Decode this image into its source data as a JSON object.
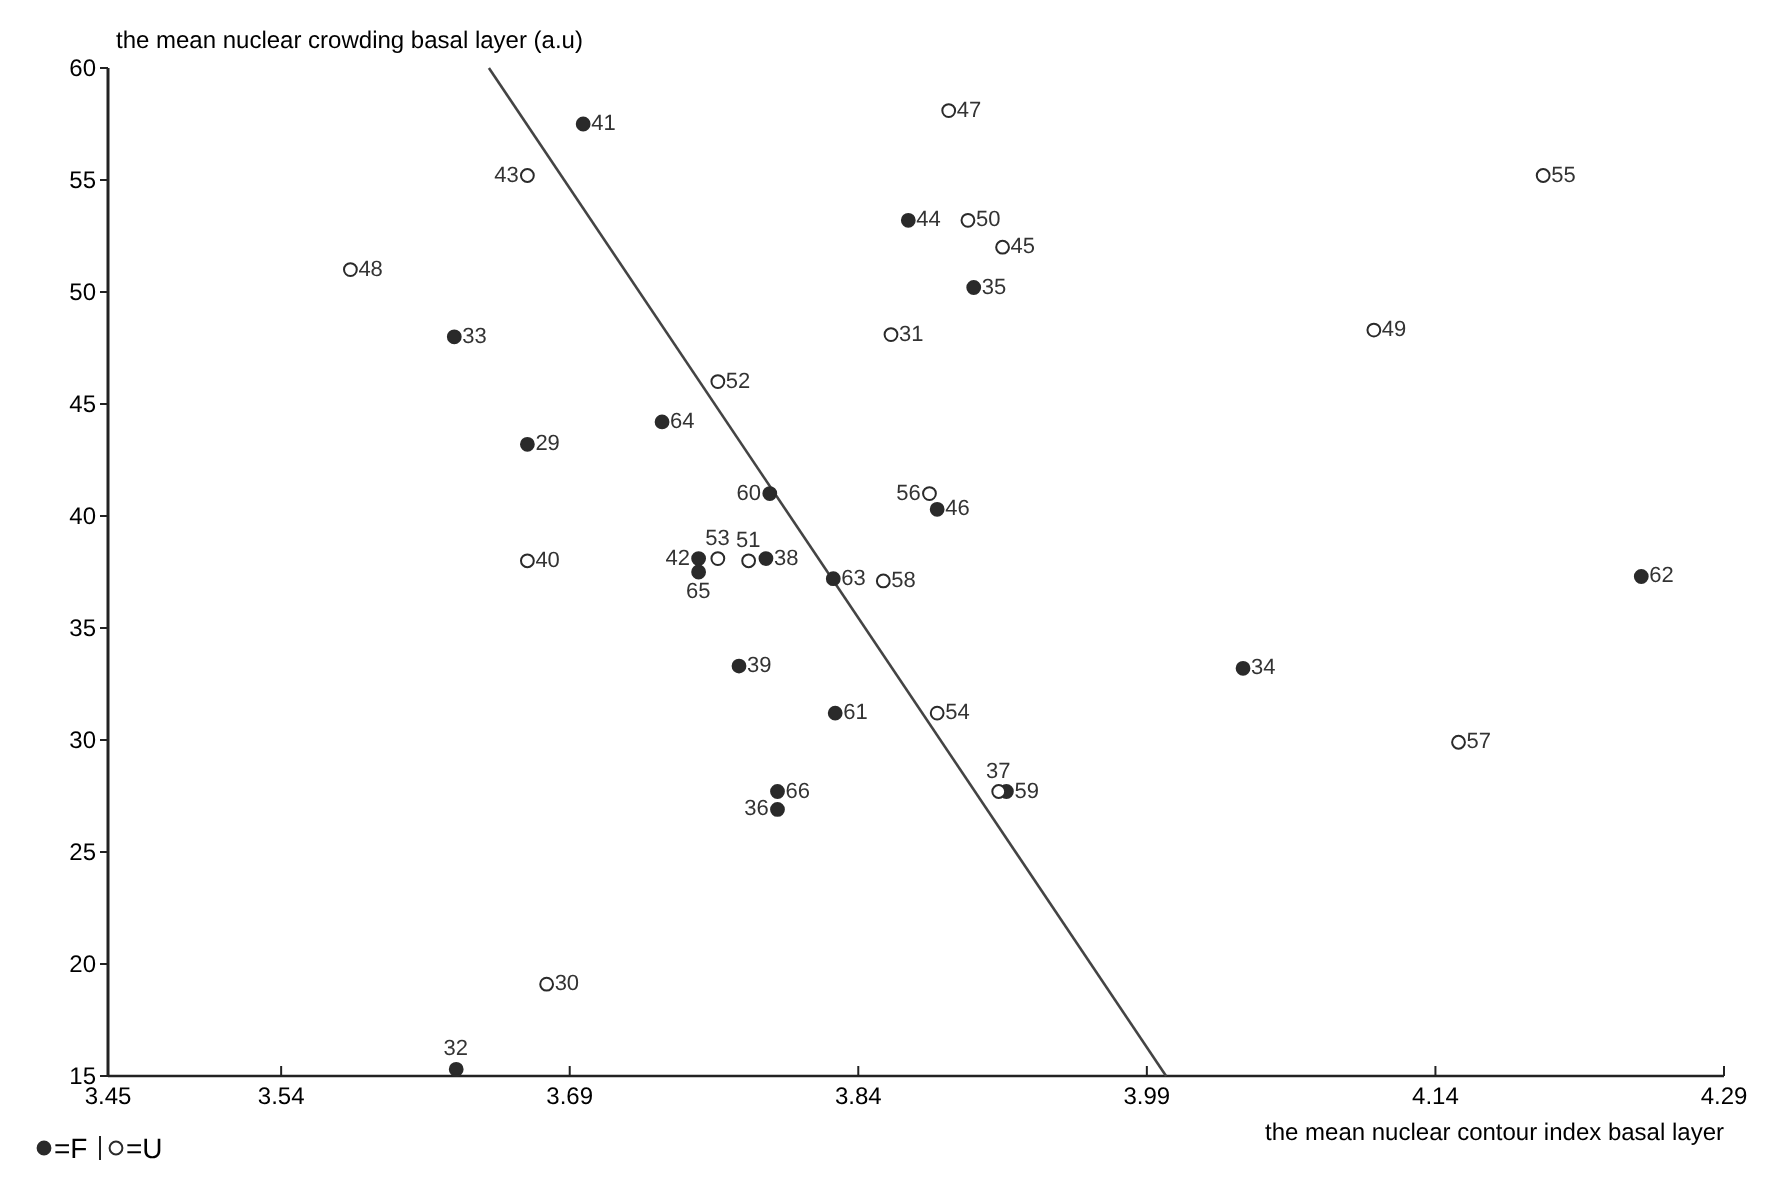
{
  "chart_data": {
    "type": "scatter",
    "xlabel": "the mean nuclear contour index basal layer",
    "ylabel": "the mean nuclear crowding basal layer (a.u)",
    "xlim": [
      3.45,
      4.29
    ],
    "xticks": [
      3.45,
      3.54,
      3.69,
      3.84,
      3.99,
      4.14,
      4.29
    ],
    "ylim": [
      15,
      60
    ],
    "yticks": [
      15,
      20,
      25,
      30,
      35,
      40,
      45,
      50,
      55,
      60
    ],
    "grid": false,
    "legend": "bottom left",
    "series": [
      {
        "name": "=F",
        "color": "#2a2a2a",
        "marker": "circle",
        "x": [
          3.697,
          3.63,
          3.668,
          3.738,
          3.794,
          3.757,
          3.757,
          3.792,
          3.827,
          3.881,
          3.866,
          3.9,
          4.247,
          4.04,
          3.917,
          3.828,
          3.778,
          3.798,
          3.798,
          3.631
        ],
        "values": [
          57.5,
          48.0,
          43.2,
          44.2,
          41.0,
          38.1,
          37.5,
          38.1,
          37.2,
          40.3,
          53.2,
          50.2,
          37.3,
          33.2,
          27.7,
          31.2,
          33.3,
          27.7,
          26.9,
          15.3
        ]
      },
      {
        "name": "=U",
        "color": "#ffffff",
        "marker": "circle",
        "x": [
          3.668,
          3.576,
          3.767,
          3.668,
          3.767,
          3.783,
          3.853,
          3.877,
          3.857,
          3.897,
          3.915,
          3.887,
          4.196,
          4.108,
          4.152,
          3.881,
          3.913,
          3.678
        ],
        "values": [
          55.2,
          51.0,
          46.0,
          38.0,
          38.1,
          38.0,
          37.1,
          41.0,
          48.1,
          53.2,
          52.0,
          58.1,
          55.2,
          48.3,
          29.9,
          31.2,
          27.7,
          19.1
        ]
      },
      {
        "type": "line",
        "color": "#444444",
        "x": [
          3.648,
          4.0
        ],
        "values": [
          60,
          15
        ]
      }
    ],
    "annotations": [
      {
        "text": "41",
        "x": 3.697,
        "y": 57.5
      },
      {
        "text": "33",
        "x": 3.63,
        "y": 48.0
      },
      {
        "text": "29",
        "x": 3.668,
        "y": 43.2
      },
      {
        "text": "64",
        "x": 3.738,
        "y": 44.2
      },
      {
        "text": "60",
        "x": 3.794,
        "y": 41.0
      },
      {
        "text": "42",
        "x": 3.757,
        "y": 38.1
      },
      {
        "text": "65",
        "x": 3.757,
        "y": 37.5
      },
      {
        "text": "38",
        "x": 3.792,
        "y": 38.1
      },
      {
        "text": "63",
        "x": 3.827,
        "y": 37.2
      },
      {
        "text": "46",
        "x": 3.881,
        "y": 40.3
      },
      {
        "text": "44",
        "x": 3.866,
        "y": 53.2
      },
      {
        "text": "35",
        "x": 3.9,
        "y": 50.2
      },
      {
        "text": "62",
        "x": 4.247,
        "y": 37.3
      },
      {
        "text": "34",
        "x": 4.04,
        "y": 33.2
      },
      {
        "text": "59",
        "x": 3.917,
        "y": 27.7
      },
      {
        "text": "61",
        "x": 3.828,
        "y": 31.2
      },
      {
        "text": "39",
        "x": 3.778,
        "y": 33.3
      },
      {
        "text": "66",
        "x": 3.798,
        "y": 27.7
      },
      {
        "text": "36",
        "x": 3.798,
        "y": 26.9
      },
      {
        "text": "32",
        "x": 3.631,
        "y": 15.3
      },
      {
        "text": "43",
        "x": 3.668,
        "y": 55.2
      },
      {
        "text": "48",
        "x": 3.576,
        "y": 51.0
      },
      {
        "text": "52",
        "x": 3.767,
        "y": 46.0
      },
      {
        "text": "40",
        "x": 3.668,
        "y": 38.0
      },
      {
        "text": "53",
        "x": 3.767,
        "y": 38.1
      },
      {
        "text": "51",
        "x": 3.783,
        "y": 38.0
      },
      {
        "text": "58",
        "x": 3.853,
        "y": 37.1
      },
      {
        "text": "56",
        "x": 3.877,
        "y": 41.0
      },
      {
        "text": "31",
        "x": 3.857,
        "y": 48.1
      },
      {
        "text": "50",
        "x": 3.897,
        "y": 53.2
      },
      {
        "text": "45",
        "x": 3.915,
        "y": 52.0
      },
      {
        "text": "47",
        "x": 3.887,
        "y": 58.1
      },
      {
        "text": "55",
        "x": 4.196,
        "y": 55.2
      },
      {
        "text": "49",
        "x": 4.108,
        "y": 48.3
      },
      {
        "text": "57",
        "x": 4.152,
        "y": 29.9
      },
      {
        "text": "54",
        "x": 3.881,
        "y": 31.2
      },
      {
        "text": "37",
        "x": 3.913,
        "y": 27.7
      },
      {
        "text": "30",
        "x": 3.678,
        "y": 19.1
      }
    ]
  }
}
